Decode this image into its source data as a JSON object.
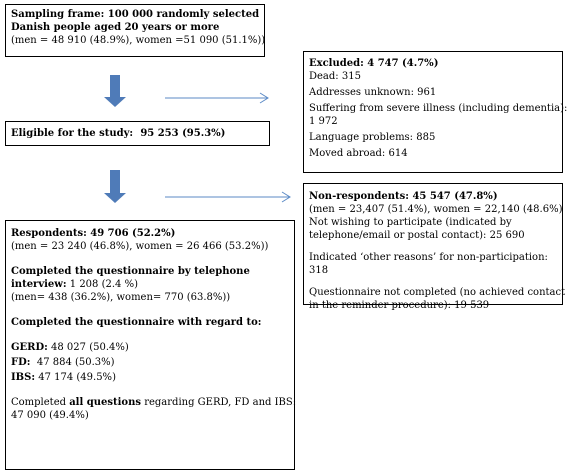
{
  "sampling_box": {
    "line1": "Sampling frame: 100 000 randomly selected",
    "line2": "Danish people aged 20 years or more",
    "line3": "(men = 48 910 (48.9%), women =51 090 (51.1%))"
  },
  "eligible_box": {
    "label": "Eligible for the study:",
    "value": "95 253 (95.3%)"
  },
  "excluded_box": {
    "title": "Excluded: 4 747 (4.7%)",
    "items": [
      "Dead: 315",
      "Addresses unknown: 961",
      "Suffering from severe illness (including dementia):",
      "1 972",
      "Language problems: 885",
      "Moved abroad: 614"
    ]
  },
  "respondents_box": {
    "title": "Respondents: 49 706 (52.2%)",
    "gender": "(men = 23 240 (46.8%), women = 26 466 (53.2%))",
    "telephone_title_1": "Completed the questionnaire by telephone",
    "telephone_title_2_bold": "interview:",
    "telephone_title_2_rest": " 1 208 (2.4 %)",
    "telephone_gender": "(men= 438 (36.2%), women= 770 (63.8%))",
    "regard_title": "Completed the questionnaire with regard to:",
    "gerd_label": "GERD:",
    "gerd_value": " 48 027 (50.4%)",
    "fd_label": "FD:",
    "fd_value": "  47 884 (50.3%)",
    "ibs_label": "IBS:",
    "ibs_value": " 47 174 (49.5%)",
    "all_pre": "Completed ",
    "all_bold": "all questions",
    "all_post": " regarding GERD, FD and IBS:",
    "all_value": "47 090 (49.4%)"
  },
  "nonrespondents_box": {
    "title": "Non-respondents: 45 547 (47.8%)",
    "gender": "(men = 23,407 (51.4%), women = 22,140 (48.6%)",
    "not_wishing_1": "Not wishing to participate (indicated by",
    "not_wishing_2": "telephone/email or postal contact): 25 690",
    "other_1": "Indicated ‘other reasons’ for non-participation:",
    "other_2": "318",
    "notcompleted_1": "Questionnaire not completed (no achieved contact",
    "notcompleted_2": "in the reminder procedure): 19 539"
  },
  "colors": {
    "down_arrow": "#4f7bb8",
    "side_arrow": "#5b8ac6",
    "border": "#000000"
  }
}
